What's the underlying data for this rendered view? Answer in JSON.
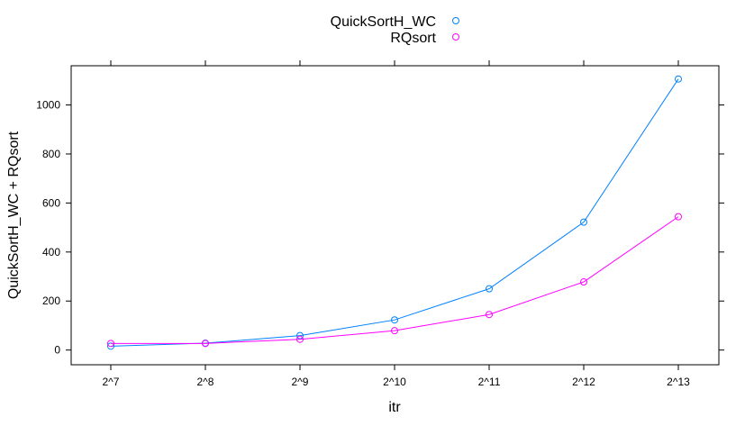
{
  "chart_data": {
    "type": "line",
    "title": "",
    "xlabel": "itr",
    "ylabel": "QuickSortH_WC + RQsort",
    "categories": [
      "2^7",
      "2^8",
      "2^9",
      "2^10",
      "2^11",
      "2^12",
      "2^13"
    ],
    "ylim": [
      -60,
      1160
    ],
    "yticks": [
      0,
      200,
      400,
      600,
      800,
      1000
    ],
    "grid": false,
    "legend_position": "top",
    "series": [
      {
        "name": "QuickSortH_WC",
        "color": "#0080ff",
        "values": [
          16,
          28,
          59,
          123,
          250,
          522,
          1106
        ]
      },
      {
        "name": "RQsort",
        "color": "#ff00ff",
        "values": [
          27,
          27,
          44,
          79,
          145,
          278,
          544
        ]
      }
    ]
  }
}
